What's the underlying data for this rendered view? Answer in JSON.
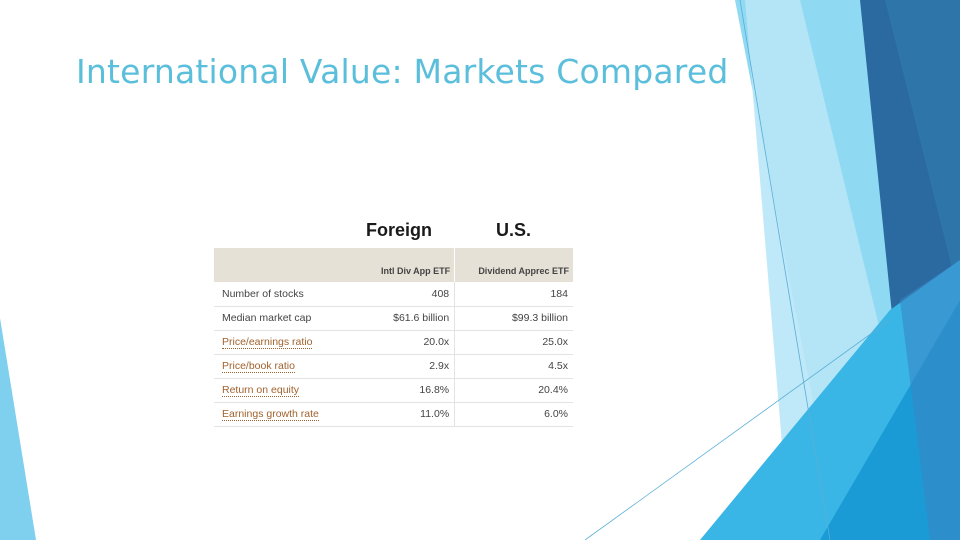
{
  "title": "International Value: Markets Compared",
  "table": {
    "group_headers": [
      "Foreign",
      "U.S."
    ],
    "column_headers": [
      "",
      "Intl Div App ETF",
      "Dividend Apprec ETF"
    ],
    "rows": [
      {
        "label": "Number of stocks",
        "foreign": "408",
        "us": "184"
      },
      {
        "label": "Median market cap",
        "foreign": "$61.6 billion",
        "us": "$99.3 billion"
      },
      {
        "label": "Price/earnings ratio",
        "foreign": "20.0x",
        "us": "25.0x"
      },
      {
        "label": "Price/book ratio",
        "foreign": "2.9x",
        "us": "4.5x"
      },
      {
        "label": "Return on equity",
        "foreign": "16.8%",
        "us": "20.4%"
      },
      {
        "label": "Earnings growth rate",
        "foreign": "11.0%",
        "us": "6.0%"
      }
    ]
  },
  "colors": {
    "title": "#5bbfdc",
    "header_bg": "#e6e1d7",
    "link_label": "#a0622d"
  }
}
